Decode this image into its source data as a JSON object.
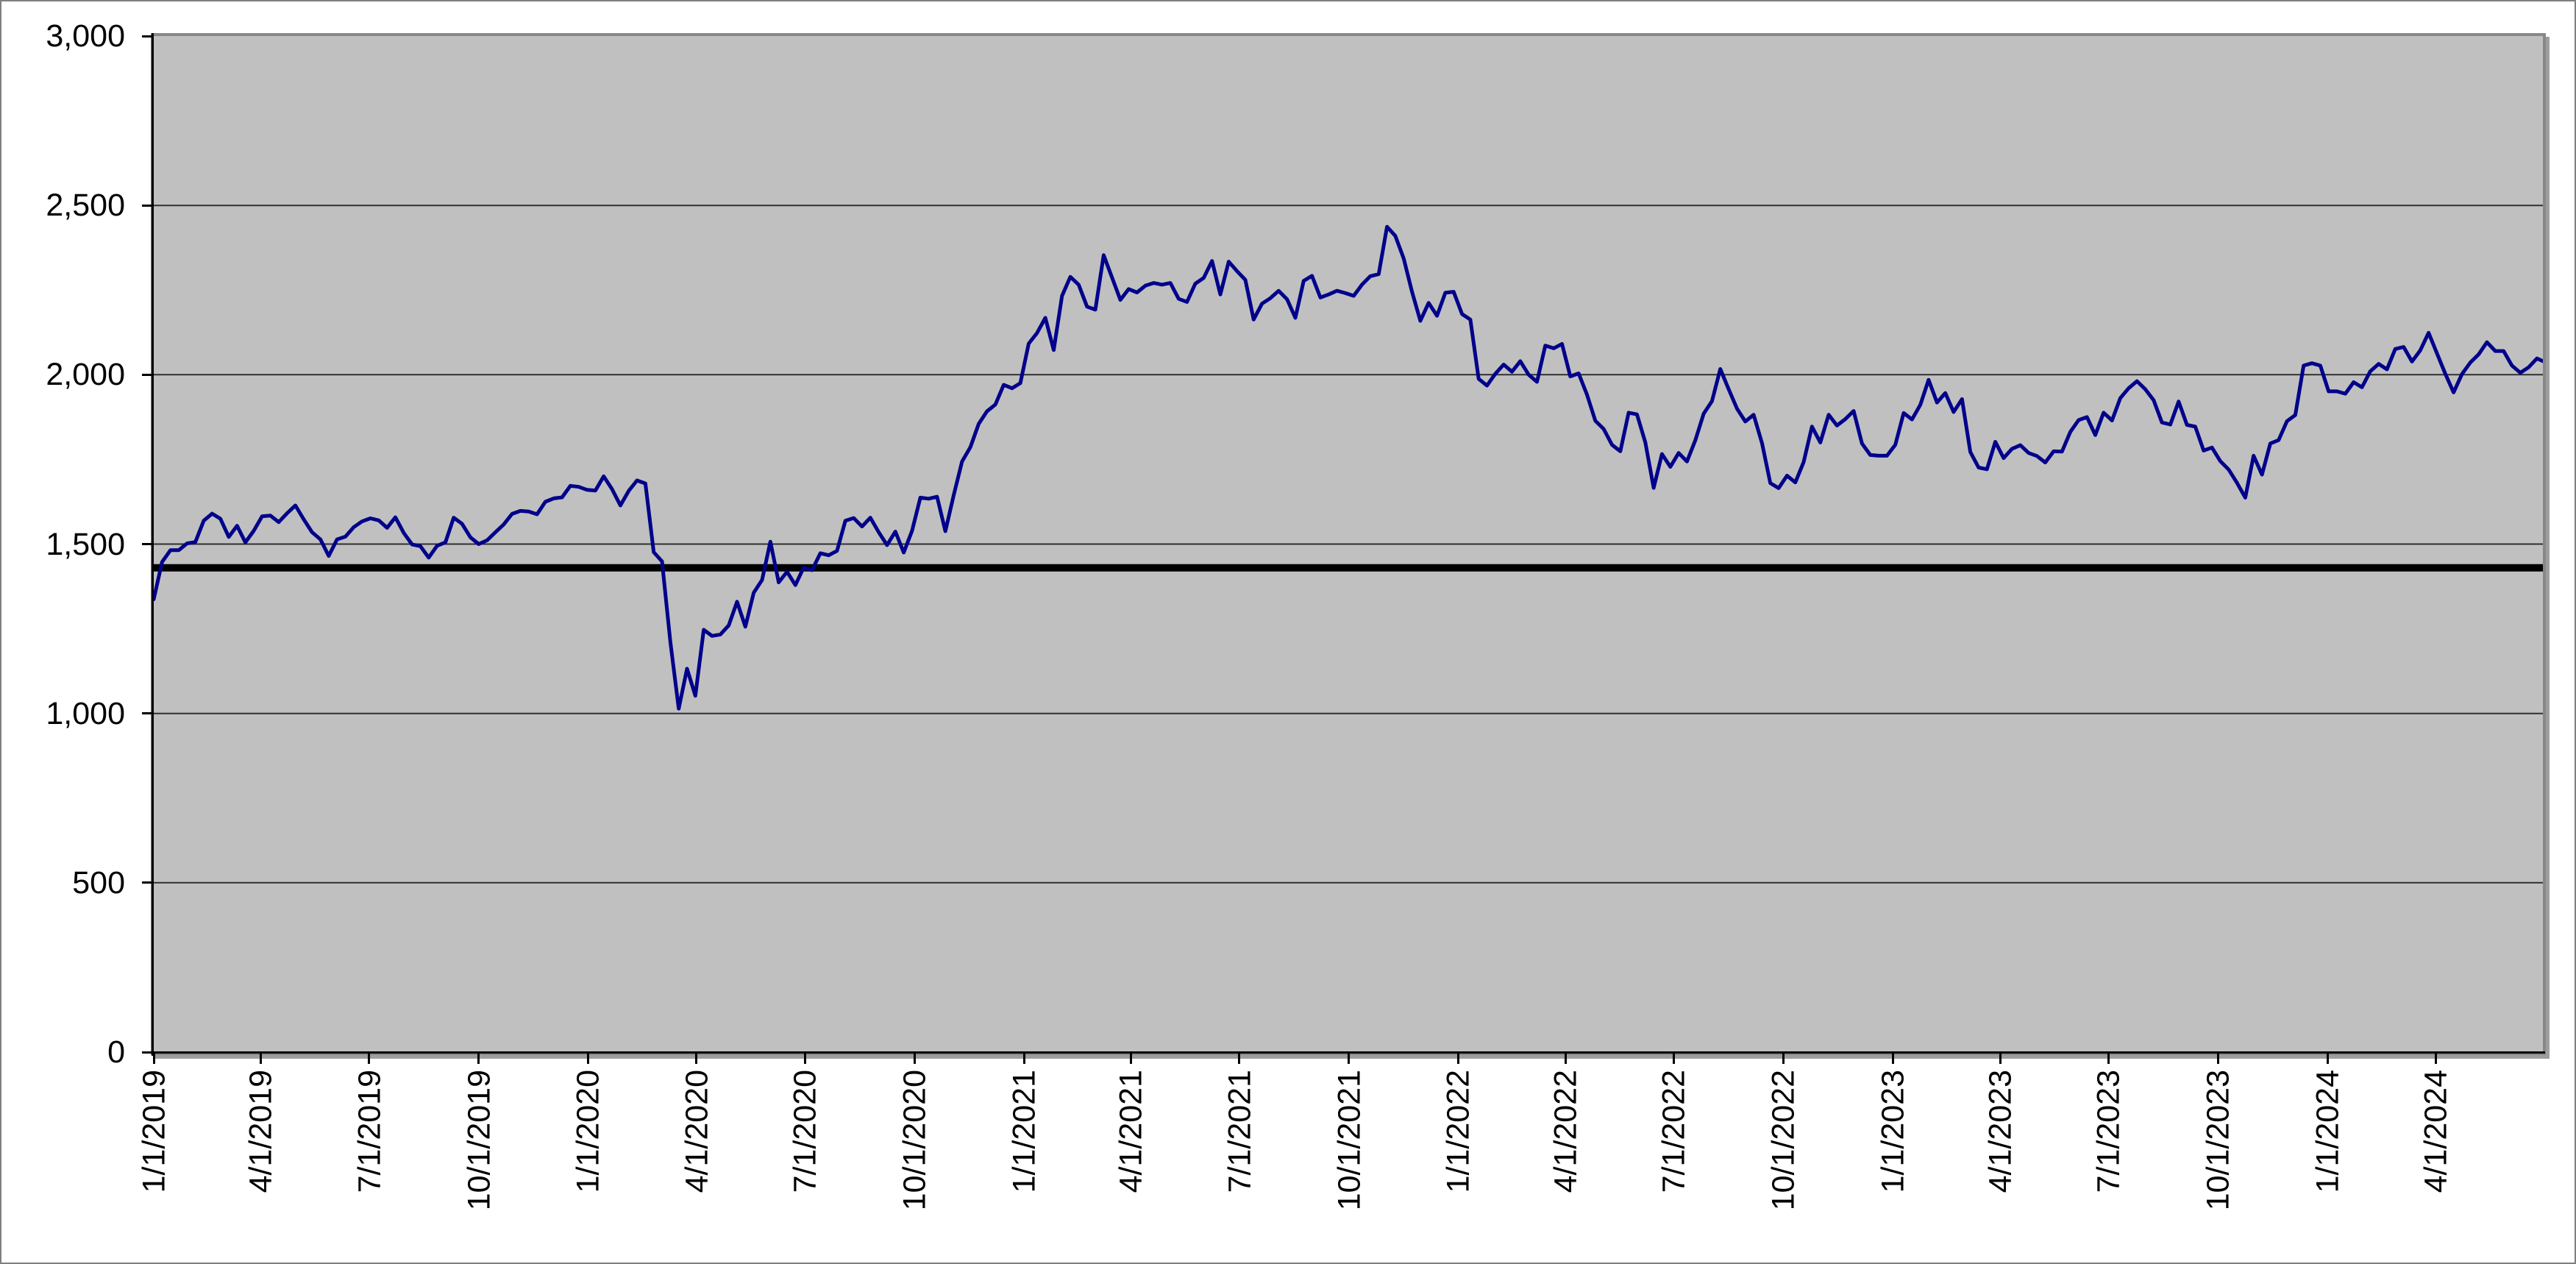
{
  "chart_data": {
    "type": "line",
    "title": "",
    "xlabel": "",
    "ylabel": "",
    "ylim": [
      0,
      3000
    ],
    "y_tick_interval": 500,
    "y_tick_labels": [
      "0",
      "500",
      "1,000",
      "1,500",
      "2,000",
      "2,500",
      "3,000"
    ],
    "x_tick_labels": [
      "1/1/2019",
      "4/1/2019",
      "7/1/2019",
      "10/1/2019",
      "1/1/2020",
      "4/1/2020",
      "7/1/2020",
      "10/1/2020",
      "1/1/2021",
      "4/1/2021",
      "7/1/2021",
      "10/1/2021",
      "1/1/2022",
      "4/1/2022",
      "7/1/2022",
      "10/1/2022",
      "1/1/2023",
      "4/1/2023",
      "7/1/2023",
      "10/1/2023",
      "1/1/2024",
      "4/1/2024"
    ],
    "x_tick_days": [
      0,
      90,
      181,
      273,
      365,
      456,
      547,
      639,
      731,
      821,
      912,
      1004,
      1096,
      1186,
      1277,
      1369,
      1461,
      1551,
      1642,
      1734,
      1826,
      1917
    ],
    "x_axis_span_days": 2007,
    "grid": "horizontal",
    "legend": "none",
    "reference_line": {
      "value": 1430
    },
    "series": [
      {
        "point_interval_days": 7,
        "values": [
          1337,
          1447,
          1482,
          1482,
          1502,
          1506,
          1569,
          1590,
          1575,
          1521,
          1554,
          1505,
          1539,
          1582,
          1584,
          1565,
          1591,
          1614,
          1573,
          1535,
          1514,
          1465,
          1514,
          1522,
          1550,
          1567,
          1576,
          1570,
          1548,
          1579,
          1533,
          1499,
          1494,
          1460,
          1495,
          1505,
          1578,
          1560,
          1520,
          1500,
          1511,
          1535,
          1558,
          1589,
          1598,
          1596,
          1588,
          1625,
          1635,
          1638,
          1672,
          1669,
          1660,
          1658,
          1700,
          1662,
          1614,
          1657,
          1688,
          1679,
          1476,
          1449,
          1210,
          1014,
          1132,
          1052,
          1247,
          1229,
          1233,
          1260,
          1330,
          1256,
          1356,
          1394,
          1507,
          1387,
          1418,
          1379,
          1431,
          1423,
          1473,
          1467,
          1480,
          1569,
          1577,
          1552,
          1578,
          1535,
          1497,
          1537,
          1475,
          1539,
          1637,
          1634,
          1640,
          1538,
          1644,
          1744,
          1786,
          1855,
          1892,
          1912,
          1970,
          1960,
          1975,
          2092,
          2123,
          2168,
          2073,
          2233,
          2289,
          2266,
          2201,
          2192,
          2353,
          2287,
          2221,
          2253,
          2243,
          2263,
          2271,
          2266,
          2271,
          2224,
          2215,
          2269,
          2286,
          2336,
          2237,
          2334,
          2306,
          2280,
          2163,
          2210,
          2226,
          2248,
          2223,
          2168,
          2277,
          2292,
          2228,
          2237,
          2248,
          2241,
          2233,
          2266,
          2291,
          2297,
          2437,
          2410,
          2343,
          2245,
          2159,
          2212,
          2174,
          2242,
          2245,
          2179,
          2163,
          1988,
          1968,
          2003,
          2030,
          2009,
          2040,
          2000,
          1979,
          2086,
          2078,
          2091,
          1995,
          2004,
          1941,
          1864,
          1840,
          1793,
          1774,
          1888,
          1883,
          1800,
          1666,
          1766,
          1728,
          1769,
          1744,
          1806,
          1885,
          1922,
          2017,
          1957,
          1900,
          1862,
          1882,
          1798,
          1680,
          1665,
          1702,
          1682,
          1742,
          1847,
          1800,
          1882,
          1850,
          1869,
          1893,
          1797,
          1763,
          1761,
          1761,
          1793,
          1887,
          1868,
          1911,
          1985,
          1918,
          1946,
          1890,
          1928,
          1772,
          1726,
          1721,
          1802,
          1754,
          1781,
          1792,
          1769,
          1760,
          1741,
          1774,
          1773,
          1831,
          1866,
          1875,
          1822,
          1888,
          1865,
          1931,
          1960,
          1981,
          1957,
          1925,
          1859,
          1853,
          1921,
          1852,
          1847,
          1776,
          1785,
          1745,
          1720,
          1681,
          1637,
          1761,
          1705,
          1797,
          1807,
          1863,
          1881,
          2027,
          2034,
          2027,
          1951,
          1951,
          1944,
          1978,
          1963,
          2010,
          2032,
          2016,
          2076,
          2082,
          2039,
          2072,
          2124,
          2063,
          2003,
          1948,
          2002,
          2036,
          2060,
          2096,
          2070,
          2070,
          2027,
          2006,
          2022,
          2048,
          2040
        ]
      }
    ],
    "colors": {
      "series": "#00008B",
      "reference_line": "#000000",
      "plot_background": "#C0C0C0",
      "plot_border": "#888888",
      "gridline": "#303030",
      "axis": "#000000",
      "canvas_border": "#7F7F7F",
      "canvas_background": "#FFFFFF"
    }
  }
}
